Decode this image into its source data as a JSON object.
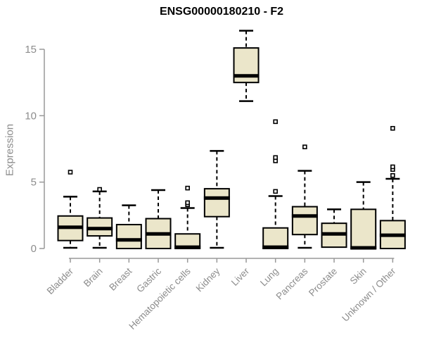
{
  "chart_data": {
    "type": "box",
    "title": "ENSG00000180210 - F2",
    "xlabel": "",
    "ylabel": "Expression",
    "yticks": [
      0,
      5,
      10,
      15
    ],
    "ylim": [
      -0.5,
      16.8
    ],
    "grid": false,
    "legend": null,
    "categories": [
      "Bladder",
      "Brain",
      "Breast",
      "Gastric",
      "Hematopoietic cells",
      "Kidney",
      "Liver",
      "Lung",
      "Pancreas",
      "Prostate",
      "Skin",
      "Unknown / Other"
    ],
    "boxes": [
      {
        "category": "Bladder",
        "low": 0.05,
        "q1": 0.6,
        "median": 1.6,
        "q3": 2.45,
        "high": 3.9,
        "outliers": [
          5.75
        ]
      },
      {
        "category": "Brain",
        "low": 0.05,
        "q1": 0.95,
        "median": 1.5,
        "q3": 2.3,
        "high": 4.3,
        "outliers": [
          4.45
        ]
      },
      {
        "category": "Breast",
        "low": 0.0,
        "q1": 0.0,
        "median": 0.65,
        "q3": 1.8,
        "high": 3.25,
        "outliers": []
      },
      {
        "category": "Gastric",
        "low": 0.0,
        "q1": 0.0,
        "median": 1.1,
        "q3": 2.25,
        "high": 4.4,
        "outliers": []
      },
      {
        "category": "Hematopoietic cells",
        "low": 0.0,
        "q1": 0.0,
        "median": 0.1,
        "q3": 1.1,
        "high": 3.05,
        "outliers": [
          3.3,
          3.45,
          4.55
        ]
      },
      {
        "category": "Kidney",
        "low": 0.05,
        "q1": 2.4,
        "median": 3.8,
        "q3": 4.5,
        "high": 7.35,
        "outliers": []
      },
      {
        "category": "Liver",
        "low": 11.1,
        "q1": 12.5,
        "median": 13.0,
        "q3": 15.1,
        "high": 16.4,
        "outliers": []
      },
      {
        "category": "Lung",
        "low": 0.0,
        "q1": 0.0,
        "median": 0.1,
        "q3": 1.55,
        "high": 3.95,
        "outliers": [
          4.3,
          6.6,
          6.85,
          9.55
        ]
      },
      {
        "category": "Pancreas",
        "low": 0.05,
        "q1": 1.05,
        "median": 2.45,
        "q3": 3.15,
        "high": 5.85,
        "outliers": [
          7.65
        ]
      },
      {
        "category": "Prostate",
        "low": 0.1,
        "q1": 0.1,
        "median": 1.1,
        "q3": 1.9,
        "high": 2.95,
        "outliers": []
      },
      {
        "category": "Skin",
        "low": 0.0,
        "q1": 0.0,
        "median": 0.05,
        "q3": 2.95,
        "high": 5.0,
        "outliers": []
      },
      {
        "category": "Unknown / Other",
        "low": 0.0,
        "q1": 0.0,
        "median": 1.0,
        "q3": 2.1,
        "high": 5.25,
        "outliers": [
          5.5,
          5.95,
          6.15,
          9.05
        ]
      }
    ],
    "colors": {
      "box_fill": "#EBE6CA",
      "box_border": "#000000",
      "median": "#000000",
      "whisker": "#000000",
      "outlier_stroke": "#000000",
      "outlier_fill": "#FFFFFF",
      "axis_line": "#999999",
      "tick_text": "#8c8c8c",
      "title_text": "#000000",
      "background": "#FFFFFF"
    }
  }
}
